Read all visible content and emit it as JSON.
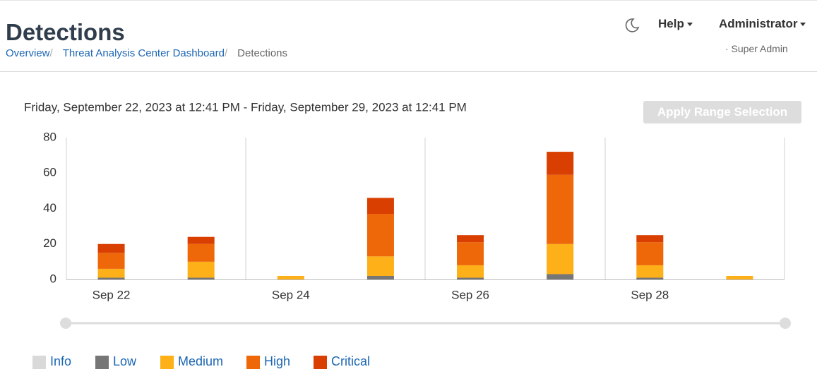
{
  "header": {
    "title": "Detections",
    "breadcrumbs": [
      "Overview",
      "Threat Analysis Center Dashboard",
      "Detections"
    ]
  },
  "nav": {
    "help": "Help",
    "user": "Administrator",
    "role": "· Super Admin"
  },
  "date_range": "Friday, September 22, 2023 at 12:41 PM - Friday, September 29, 2023 at 12:41 PM",
  "apply_button": "Apply Range Selection",
  "chart_data": {
    "type": "bar",
    "stacked": true,
    "categories": [
      "Sep 22",
      null,
      "Sep 24",
      null,
      "Sep 26",
      null,
      "Sep 28",
      null
    ],
    "series": [
      {
        "name": "Info",
        "color": "#d9d9d9",
        "values": [
          0,
          0,
          0,
          0,
          0,
          0,
          0,
          0
        ]
      },
      {
        "name": "Low",
        "color": "#767676",
        "values": [
          1,
          1,
          0,
          2,
          1,
          3,
          1,
          0
        ]
      },
      {
        "name": "Medium",
        "color": "#fdb018",
        "values": [
          5,
          9,
          2,
          11,
          7,
          17,
          7,
          2
        ]
      },
      {
        "name": "High",
        "color": "#ee6709",
        "values": [
          9,
          10,
          0,
          24,
          13,
          39,
          13,
          0
        ]
      },
      {
        "name": "Critical",
        "color": "#d93f00",
        "values": [
          5,
          4,
          0,
          9,
          4,
          13,
          4,
          0
        ]
      }
    ],
    "ylim": [
      0,
      80
    ],
    "yticks": [
      0,
      20,
      40,
      60,
      80
    ]
  }
}
